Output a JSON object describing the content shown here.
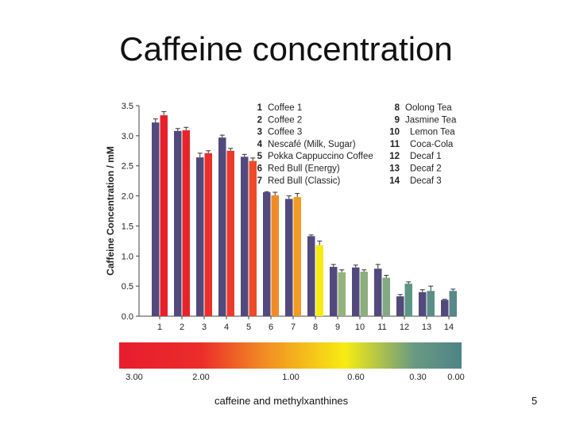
{
  "slide": {
    "title": "Caffeine concentration",
    "footer": "caffeine and methylxanthines",
    "page_number": "5"
  },
  "chart_data": {
    "type": "bar",
    "title": "",
    "ylabel": "Caffeine Concentration / mM",
    "xlabel": "",
    "ylim": [
      0,
      3.5
    ],
    "yticks": [
      "0.0",
      "0.5",
      "1.0",
      "1.5",
      "2.0",
      "2.5",
      "3.0",
      "3.5"
    ],
    "categories": [
      "1",
      "2",
      "3",
      "4",
      "5",
      "6",
      "7",
      "8",
      "9",
      "10",
      "11",
      "12",
      "13",
      "14"
    ],
    "legend": [
      {
        "num": "1",
        "name": "Coffee 1"
      },
      {
        "num": "2",
        "name": "Coffee 2"
      },
      {
        "num": "3",
        "name": "Coffee 3"
      },
      {
        "num": "4",
        "name": "Nescafé (Milk, Sugar)"
      },
      {
        "num": "5",
        "name": "Pokka Cappuccino Coffee"
      },
      {
        "num": "6",
        "name": "Red Bull (Energy)"
      },
      {
        "num": "7",
        "name": "Red Bull (Classic)"
      },
      {
        "num": "8",
        "name": "Oolong Tea"
      },
      {
        "num": "9",
        "name": "Jasmine Tea"
      },
      {
        "num": "10",
        "name": "Lemon Tea"
      },
      {
        "num": "11",
        "name": "Coca-Cola"
      },
      {
        "num": "12",
        "name": "Decaf 1"
      },
      {
        "num": "13",
        "name": "Decaf 2"
      },
      {
        "num": "14",
        "name": "Decaf 3"
      }
    ],
    "series": [
      {
        "values": [
          3.22,
          3.08,
          2.64,
          2.97,
          2.65,
          2.06,
          1.95,
          1.33,
          0.82,
          0.81,
          0.79,
          0.33,
          0.4,
          0.27
        ],
        "errors": [
          0.06,
          0.04,
          0.07,
          0.04,
          0.04,
          0.01,
          0.05,
          0.02,
          0.04,
          0.04,
          0.07,
          0.03,
          0.04,
          0.01
        ],
        "color": "#524a7c"
      },
      {
        "values": [
          3.34,
          3.09,
          2.71,
          2.75,
          2.58,
          2.01,
          1.98,
          1.18,
          0.73,
          0.74,
          0.64,
          0.54,
          0.42,
          0.42
        ],
        "errors": [
          0.06,
          0.05,
          0.04,
          0.04,
          0.05,
          0.05,
          0.06,
          0.07,
          0.04,
          0.03,
          0.04,
          0.03,
          0.08,
          0.03
        ],
        "colors": [
          "#e8202c",
          "#e8242a",
          "#ea2f2a",
          "#ec3a2a",
          "#ee4a28",
          "#f08a24",
          "#f39a20",
          "#f4ec14",
          "#95b27c",
          "#8ead7e",
          "#82a982",
          "#5c9684",
          "#5a8e86",
          "#588887"
        ]
      }
    ],
    "color_scale": {
      "labels": [
        "3.00",
        "2.00",
        "1.00",
        "0.60",
        "0.30",
        "0.00"
      ],
      "stops": [
        "#e81c2e",
        "#eb2d2a",
        "#f28a24",
        "#f7ec12",
        "#6a9a82",
        "#4e8486"
      ]
    },
    "grid": false
  }
}
